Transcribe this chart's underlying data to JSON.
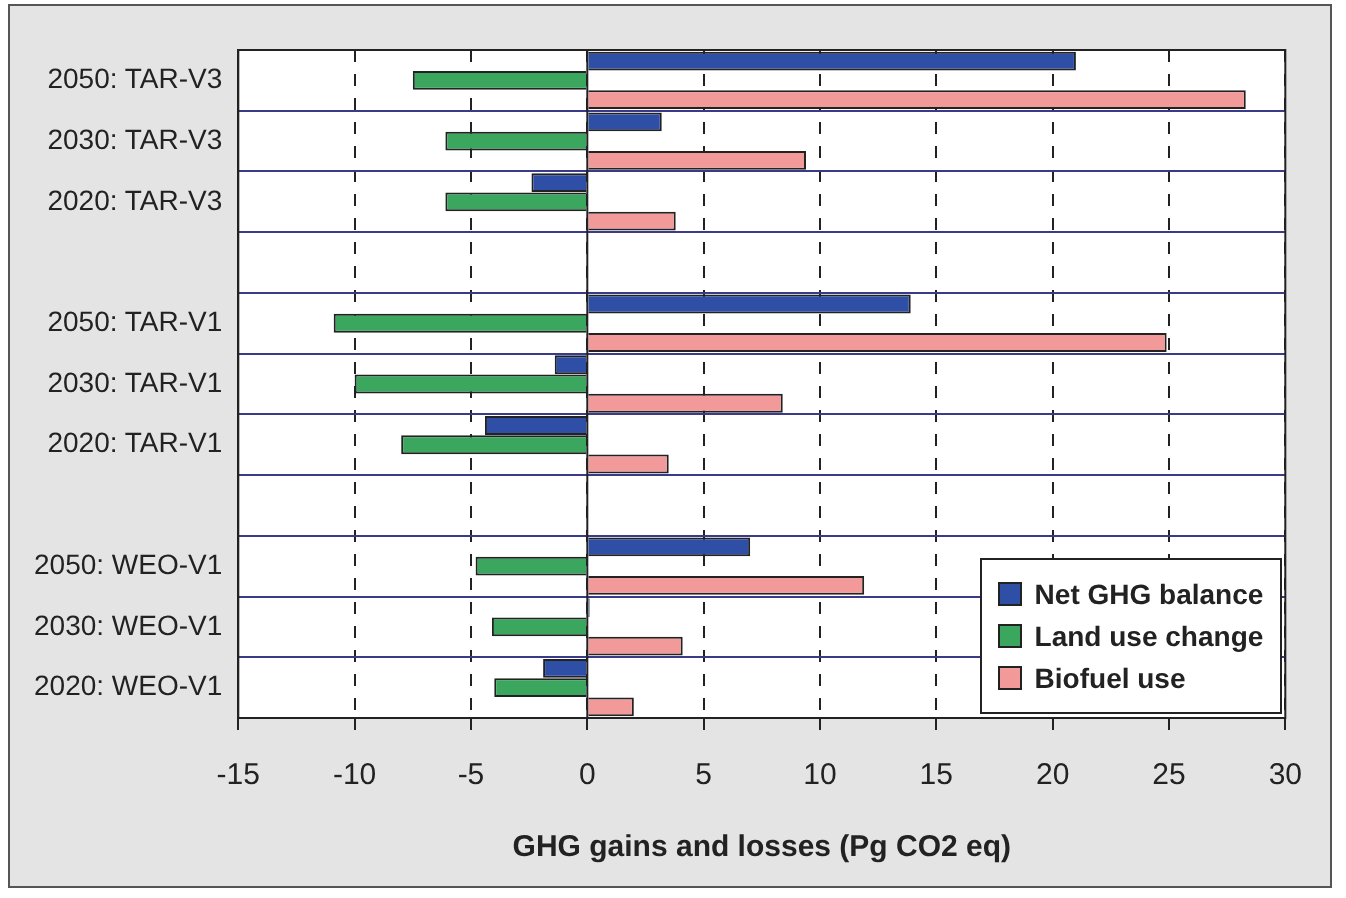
{
  "chart_data": {
    "type": "bar",
    "orientation": "horizontal",
    "xlabel": "GHG gains and losses (Pg CO2 eq)",
    "categories": [
      "2050: TAR-V3",
      "2030: TAR-V3",
      "2020: TAR-V3",
      null,
      "2050: TAR-V1",
      "2030: TAR-V1",
      "2020: TAR-V1",
      null,
      "2050: WEO-V1",
      "2030: WEO-V1",
      "2020: WEO-V1"
    ],
    "series": [
      {
        "name": "Net GHG balance",
        "color": "#2f4fa6",
        "values": [
          21,
          3.2,
          -2.4,
          null,
          13.9,
          -1.4,
          -4.4,
          null,
          7,
          0.1,
          -1.9
        ]
      },
      {
        "name": "Land use change",
        "color": "#3aa65e",
        "values": [
          -7.5,
          -6.1,
          -6.1,
          null,
          -10.9,
          -10,
          -8,
          null,
          -4.8,
          -4.1,
          -4
        ]
      },
      {
        "name": "Biofuel use",
        "color": "#f29a9a",
        "values": [
          28.3,
          9.4,
          3.8,
          null,
          24.9,
          8.4,
          3.5,
          null,
          11.9,
          4.1,
          2
        ]
      }
    ],
    "xlim": [
      -15,
      30
    ],
    "xticks": [
      -15,
      -10,
      -5,
      0,
      5,
      10,
      15,
      20,
      25,
      30
    ],
    "grid": true,
    "legend": "bottom right"
  }
}
